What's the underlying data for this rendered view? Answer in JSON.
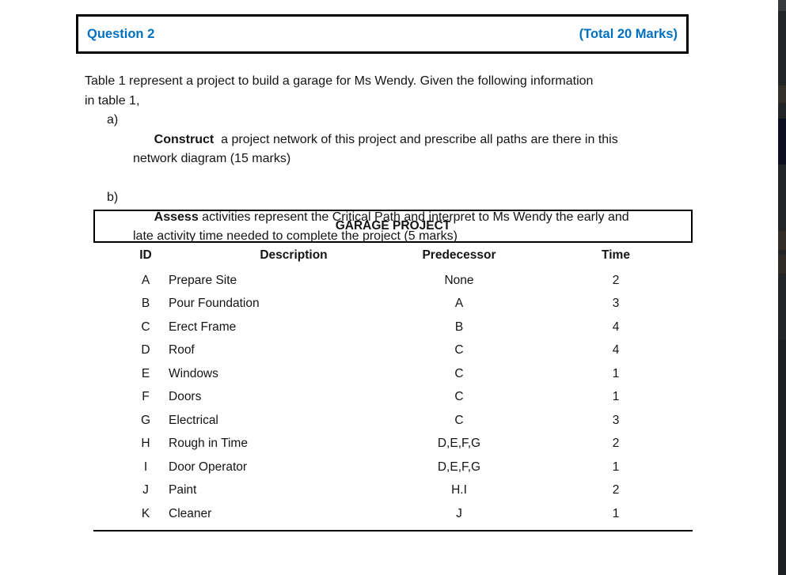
{
  "colors": {
    "accent_blue": "#0070C0",
    "text": "#141414",
    "edge_strip": "#232426"
  },
  "header": {
    "title": "Question 2",
    "marks": "(Total 20 Marks)"
  },
  "intro": "Table 1 represent a project to build a garage for Ms Wendy. Given the following information\nin table 1,",
  "items": [
    {
      "marker": "a)",
      "lead": "Construct",
      "rest": "  a project network of this project and prescribe all paths are there in this\nnetwork diagram (15 marks)"
    },
    {
      "marker": "b)",
      "lead": "Assess",
      "rest": " activities represent the Critical Path and interpret to Ms Wendy the early and\nlate activity time needed to complete the project (5 marks)"
    }
  ],
  "table": {
    "title": "GARAGE PROJECT",
    "columns": [
      "ID",
      "Description",
      "Predecessor",
      "Time"
    ],
    "rows": [
      {
        "id": "A",
        "description": "Prepare Site",
        "predecessor": "None",
        "time": "2"
      },
      {
        "id": "B",
        "description": "Pour Foundation",
        "predecessor": "A",
        "time": "3"
      },
      {
        "id": "C",
        "description": "Erect Frame",
        "predecessor": "B",
        "time": "4"
      },
      {
        "id": "D",
        "description": "Roof",
        "predecessor": "C",
        "time": "4"
      },
      {
        "id": "E",
        "description": "Windows",
        "predecessor": "C",
        "time": "1"
      },
      {
        "id": "F",
        "description": "Doors",
        "predecessor": "C",
        "time": "1"
      },
      {
        "id": "G",
        "description": "Electrical",
        "predecessor": "C",
        "time": "3"
      },
      {
        "id": "H",
        "description": "Rough in Time",
        "predecessor": "D,E,F,G",
        "time": "2"
      },
      {
        "id": "I",
        "description": "Door Operator",
        "predecessor": "D,E,F,G",
        "time": "1"
      },
      {
        "id": "J",
        "description": "Paint",
        "predecessor": "H.I",
        "time": "2"
      },
      {
        "id": "K",
        "description": "Cleaner",
        "predecessor": "J",
        "time": "1"
      }
    ]
  }
}
